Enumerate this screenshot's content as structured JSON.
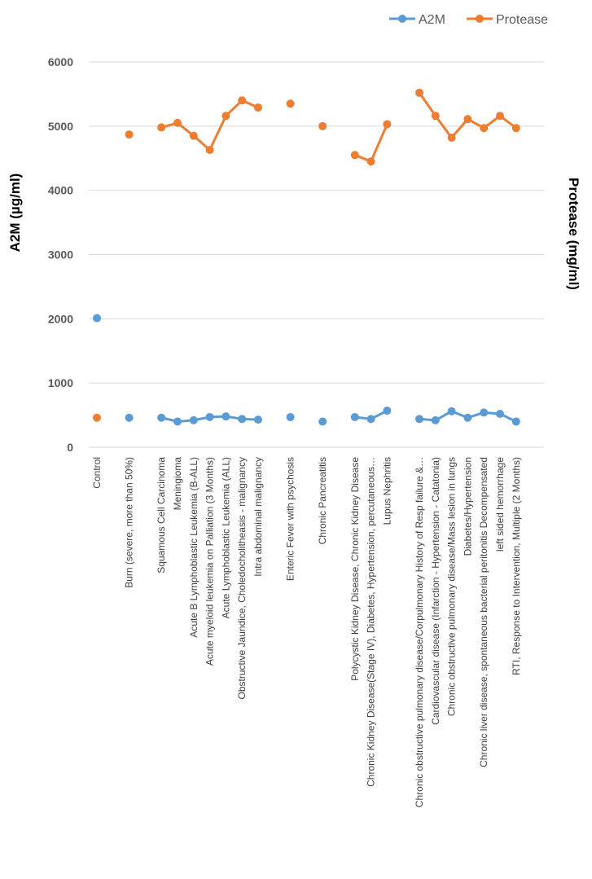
{
  "chart_data": {
    "type": "line",
    "title": "",
    "xlabel": "",
    "ylabel": "A2M (µg/ml)",
    "ylabel_right": "Protease (mg/ml)",
    "ylim": [
      0,
      6000
    ],
    "yticks": [
      0,
      1000,
      2000,
      3000,
      4000,
      5000,
      6000
    ],
    "grid": true,
    "legend_position": "top-right",
    "categories": [
      "Control",
      "",
      "Burn (severe, more than 50%)",
      "",
      "Squamous Cell Carcinoma",
      "Meningioma",
      "Acute B Lymphoblastic Leukemia (B-ALL)",
      "Acute myeloid leukemia on Palliation (3 Months)",
      "Acute Lymphoblastic Leukemia (ALL)",
      "Obstructive Jaundice, Choledocholitheasis - malignancy",
      "Intra abdominal malignancy",
      "",
      "Enteric Fever with psychosis",
      "",
      "Chronic Pancreatitis",
      "",
      "Polycystic Kidney Disease, Chronic Kidney Disease",
      "Chronic Kidney Disease(Stage IV), Diabetes, Hypertension, percutaneous…",
      "Lupus Nephritis",
      "",
      "Chronic obstructive pulmonary disease/Corpulmonary History of Resp failure &…",
      "Cardiovascular disease (Infarction - Hypertension - Catatonia)",
      "Chronic obstructive pulmonary disease/Mass lesion in lungs",
      "Diabetes/Hypertension",
      "Chronic liver disease, spontaneous bacterial peritonitis Decompensated",
      "left sided hemorrhage",
      "RTI, Response to Intervention, Multiple (2 Months)"
    ],
    "series": [
      {
        "name": "A2M",
        "color": "#5b9bd5",
        "values": [
          2010,
          null,
          460,
          null,
          460,
          400,
          420,
          470,
          480,
          440,
          430,
          null,
          470,
          null,
          400,
          null,
          470,
          440,
          570,
          null,
          440,
          420,
          560,
          460,
          540,
          520,
          400
        ]
      },
      {
        "name": "Protease",
        "color": "#ed7d31",
        "values": [
          460,
          null,
          4870,
          null,
          4980,
          5050,
          4850,
          4630,
          5160,
          5400,
          5290,
          null,
          5350,
          null,
          5000,
          null,
          4550,
          4450,
          5030,
          null,
          5520,
          5160,
          4820,
          5110,
          4970,
          5160,
          4970
        ]
      }
    ]
  }
}
